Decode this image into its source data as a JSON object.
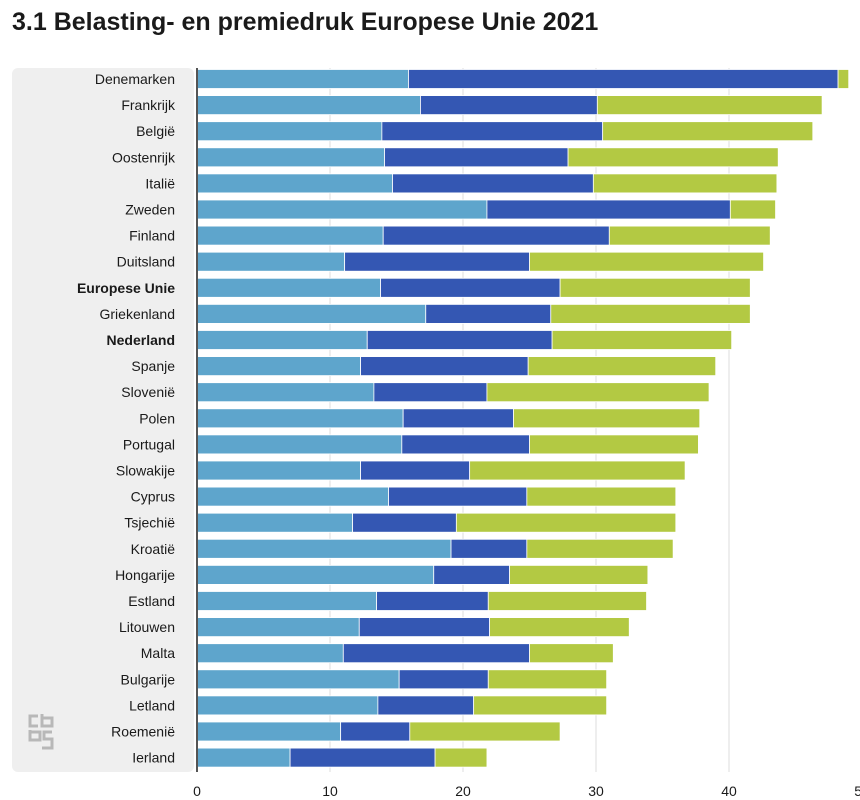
{
  "chart_data": {
    "type": "bar",
    "orientation": "horizontal",
    "stacked": true,
    "title": "3.1 Belasting- en premiedruk Europese Unie 2021",
    "categories": [
      "Denemarken",
      "Frankrijk",
      "België",
      "Oostenrijk",
      "Italië",
      "Zweden",
      "Finland",
      "Duitsland",
      "Europese Unie",
      "Griekenland",
      "Nederland",
      "Spanje",
      "Slovenië",
      "Polen",
      "Portugal",
      "Slowakije",
      "Cyprus",
      "Tsjechië",
      "Kroatië",
      "Hongarije",
      "Estland",
      "Litouwen",
      "Malta",
      "Bulgarije",
      "Letland",
      "Roemenië",
      "Ierland"
    ],
    "highlighted": [
      "Europese Unie",
      "Nederland"
    ],
    "series": [
      {
        "color": "#5ea5cc",
        "values": [
          15.9,
          16.8,
          13.9,
          14.1,
          14.7,
          21.8,
          14.0,
          11.1,
          13.8,
          17.2,
          12.8,
          12.3,
          13.3,
          15.5,
          15.4,
          12.3,
          14.4,
          11.7,
          19.1,
          17.8,
          13.5,
          12.2,
          11.0,
          15.2,
          13.6,
          10.8,
          7.0
        ]
      },
      {
        "color": "#3457b3",
        "values": [
          32.3,
          13.3,
          16.6,
          13.8,
          15.1,
          18.3,
          17.0,
          13.9,
          13.5,
          9.4,
          13.9,
          12.6,
          8.5,
          8.3,
          9.6,
          8.2,
          10.4,
          7.8,
          5.7,
          5.7,
          8.4,
          9.8,
          14.0,
          6.7,
          7.2,
          5.2,
          10.9
        ]
      },
      {
        "color": "#b3c943",
        "values": [
          0.8,
          16.9,
          15.8,
          15.8,
          13.8,
          3.4,
          12.1,
          17.6,
          14.3,
          15.0,
          13.5,
          14.1,
          16.7,
          14.0,
          12.7,
          16.2,
          11.2,
          16.5,
          11.0,
          10.4,
          11.9,
          10.5,
          6.3,
          8.9,
          10.0,
          11.3,
          3.9
        ]
      }
    ],
    "xlim": [
      0,
      50
    ],
    "xticks": [
      "0",
      "10",
      "20",
      "30",
      "40",
      "50"
    ],
    "legend": "none"
  }
}
